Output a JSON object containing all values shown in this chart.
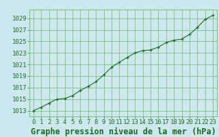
{
  "x": [
    0,
    1,
    2,
    3,
    4,
    5,
    6,
    7,
    8,
    9,
    10,
    11,
    12,
    13,
    14,
    15,
    16,
    17,
    18,
    19,
    20,
    21,
    22,
    23
  ],
  "y": [
    1013.0,
    1013.6,
    1014.3,
    1015.0,
    1015.1,
    1015.6,
    1016.5,
    1017.2,
    1018.0,
    1019.2,
    1020.5,
    1021.4,
    1022.2,
    1023.0,
    1023.4,
    1023.5,
    1024.0,
    1024.8,
    1025.2,
    1025.4,
    1026.2,
    1027.4,
    1028.8,
    1029.5
  ],
  "line_color": "#1a6b1a",
  "marker": "+",
  "bg_color": "#cce8ee",
  "grid_color": "#66bb66",
  "ylabel_ticks": [
    1013,
    1015,
    1017,
    1019,
    1021,
    1023,
    1025,
    1027,
    1029
  ],
  "xlabel": "Graphe pression niveau de la mer (hPa)",
  "ylim": [
    1012.0,
    1030.5
  ],
  "xlim": [
    -0.5,
    23.5
  ],
  "tick_fontsize": 6.5,
  "xlabel_fontsize": 8.5
}
